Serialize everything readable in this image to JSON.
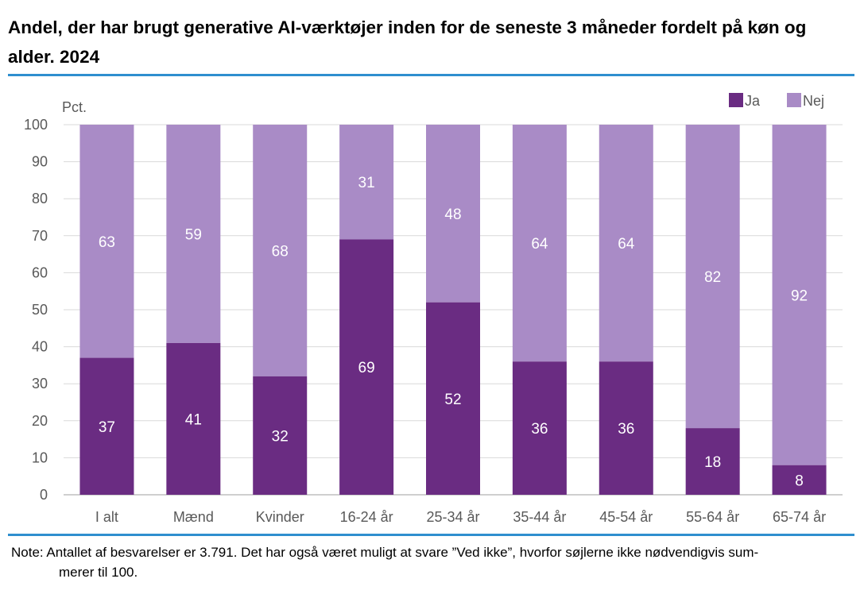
{
  "title": "Andel, der har brugt generative AI-værktøjer inden for de seneste 3 måneder fordelt på køn og alder. 2024",
  "note_line1": "Note: Antallet af besvarelser er 3.791. Det har også været muligt at svare ”Ved ikke”, hvorfor søjlerne ikke nødvendigvis sum-",
  "note_line2": "merer til 100.",
  "colors": {
    "ja": "#6a2c82",
    "nej": "#a98bc6",
    "rule": "#2f8fcf"
  },
  "chart_data": {
    "type": "bar",
    "stacked": true,
    "ylabel": "Pct.",
    "ylim": [
      0,
      100
    ],
    "yticks": [
      0,
      10,
      20,
      30,
      40,
      50,
      60,
      70,
      80,
      90,
      100
    ],
    "grid": true,
    "legend_position": "top-right",
    "categories": [
      "I alt",
      "Mænd",
      "Kvinder",
      "16-24 år",
      "25-34 år",
      "35-44 år",
      "45-54 år",
      "55-64 år",
      "65-74 år"
    ],
    "series": [
      {
        "name": "Ja",
        "values": [
          37,
          41,
          32,
          69,
          52,
          36,
          36,
          18,
          8
        ]
      },
      {
        "name": "Nej",
        "values": [
          63,
          59,
          68,
          31,
          48,
          64,
          64,
          82,
          92
        ]
      }
    ]
  }
}
